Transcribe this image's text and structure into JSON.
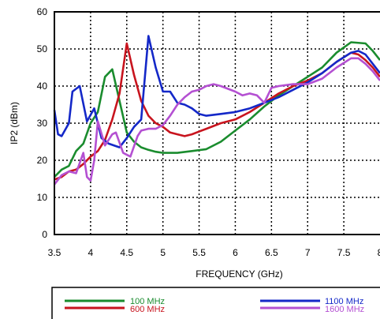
{
  "chart_data": {
    "type": "line",
    "xlabel": "FREQUENCY (GHz)",
    "ylabel": "IP2 (dBm)",
    "xlim": [
      3.5,
      8
    ],
    "ylim": [
      0,
      60
    ],
    "xticks": [
      "3.5",
      "4",
      "4.5",
      "5",
      "5.5",
      "6",
      "6.5",
      "7",
      "7.5",
      "8"
    ],
    "yticks": [
      "0",
      "10",
      "20",
      "30",
      "40",
      "50",
      "60"
    ],
    "grid": true,
    "legend_position": "bottom",
    "series": [
      {
        "name": "100 MHz",
        "color": "#1a8c2e",
        "points": [
          [
            3.5,
            15.5
          ],
          [
            3.6,
            17.5
          ],
          [
            3.7,
            18.5
          ],
          [
            3.8,
            22.5
          ],
          [
            3.9,
            24.5
          ],
          [
            4.0,
            30.0
          ],
          [
            4.1,
            33.0
          ],
          [
            4.2,
            42.5
          ],
          [
            4.3,
            44.5
          ],
          [
            4.4,
            36.0
          ],
          [
            4.5,
            27.5
          ],
          [
            4.6,
            25.0
          ],
          [
            4.7,
            23.5
          ],
          [
            4.8,
            22.8
          ],
          [
            4.9,
            22.3
          ],
          [
            5.0,
            22.0
          ],
          [
            5.2,
            22.0
          ],
          [
            5.4,
            22.5
          ],
          [
            5.6,
            23.0
          ],
          [
            5.8,
            25.0
          ],
          [
            6.0,
            28.0
          ],
          [
            6.2,
            31.0
          ],
          [
            6.4,
            34.5
          ],
          [
            6.6,
            37.5
          ],
          [
            6.8,
            40.0
          ],
          [
            7.0,
            42.5
          ],
          [
            7.2,
            45.0
          ],
          [
            7.4,
            49.0
          ],
          [
            7.6,
            51.8
          ],
          [
            7.8,
            51.5
          ],
          [
            7.9,
            49.5
          ],
          [
            8.0,
            47.0
          ]
        ]
      },
      {
        "name": "600 MHz",
        "color": "#c8141e",
        "points": [
          [
            3.5,
            14.8
          ],
          [
            3.6,
            15.5
          ],
          [
            3.7,
            17.0
          ],
          [
            3.8,
            17.5
          ],
          [
            3.9,
            19.0
          ],
          [
            4.0,
            21.0
          ],
          [
            4.1,
            22.5
          ],
          [
            4.2,
            25.5
          ],
          [
            4.3,
            31.0
          ],
          [
            4.4,
            38.0
          ],
          [
            4.5,
            51.5
          ],
          [
            4.6,
            43.0
          ],
          [
            4.7,
            36.0
          ],
          [
            4.8,
            32.0
          ],
          [
            4.9,
            30.0
          ],
          [
            5.0,
            29.0
          ],
          [
            5.1,
            27.5
          ],
          [
            5.2,
            27.0
          ],
          [
            5.3,
            26.5
          ],
          [
            5.4,
            27.0
          ],
          [
            5.6,
            28.5
          ],
          [
            5.8,
            30.0
          ],
          [
            6.0,
            31.0
          ],
          [
            6.2,
            33.0
          ],
          [
            6.4,
            35.5
          ],
          [
            6.6,
            38.0
          ],
          [
            6.8,
            40.0
          ],
          [
            7.0,
            41.5
          ],
          [
            7.2,
            43.5
          ],
          [
            7.4,
            46.5
          ],
          [
            7.6,
            49.0
          ],
          [
            7.7,
            48.5
          ],
          [
            7.8,
            47.0
          ],
          [
            7.9,
            45.0
          ],
          [
            8.0,
            42.5
          ]
        ]
      },
      {
        "name": "1100 MHz",
        "color": "#1428c8",
        "points": [
          [
            3.5,
            33.5
          ],
          [
            3.55,
            27.0
          ],
          [
            3.6,
            26.5
          ],
          [
            3.7,
            30.0
          ],
          [
            3.75,
            38.5
          ],
          [
            3.85,
            40.0
          ],
          [
            3.95,
            30.5
          ],
          [
            4.05,
            34.0
          ],
          [
            4.15,
            26.0
          ],
          [
            4.25,
            24.5
          ],
          [
            4.4,
            23.5
          ],
          [
            4.5,
            26.0
          ],
          [
            4.6,
            29.0
          ],
          [
            4.7,
            31.0
          ],
          [
            4.8,
            53.5
          ],
          [
            4.9,
            45.0
          ],
          [
            5.0,
            38.5
          ],
          [
            5.1,
            38.5
          ],
          [
            5.2,
            35.5
          ],
          [
            5.3,
            35.0
          ],
          [
            5.4,
            34.0
          ],
          [
            5.5,
            32.5
          ],
          [
            5.6,
            32.0
          ],
          [
            5.8,
            32.5
          ],
          [
            6.0,
            33.0
          ],
          [
            6.2,
            34.0
          ],
          [
            6.4,
            35.5
          ],
          [
            6.6,
            37.0
          ],
          [
            6.8,
            39.0
          ],
          [
            7.0,
            41.0
          ],
          [
            7.2,
            43.5
          ],
          [
            7.4,
            46.5
          ],
          [
            7.6,
            49.0
          ],
          [
            7.7,
            49.5
          ],
          [
            7.8,
            48.5
          ],
          [
            7.9,
            46.0
          ],
          [
            8.0,
            43.5
          ]
        ]
      },
      {
        "name": "1600 MHz",
        "color": "#b450d2",
        "points": [
          [
            3.5,
            13.5
          ],
          [
            3.6,
            16.0
          ],
          [
            3.7,
            17.0
          ],
          [
            3.8,
            16.5
          ],
          [
            3.9,
            22.0
          ],
          [
            3.95,
            15.5
          ],
          [
            4.0,
            14.5
          ],
          [
            4.05,
            20.0
          ],
          [
            4.1,
            30.5
          ],
          [
            4.2,
            24.0
          ],
          [
            4.3,
            27.0
          ],
          [
            4.35,
            27.5
          ],
          [
            4.45,
            22.0
          ],
          [
            4.55,
            21.0
          ],
          [
            4.65,
            26.5
          ],
          [
            4.7,
            28.0
          ],
          [
            4.8,
            28.5
          ],
          [
            4.9,
            28.5
          ],
          [
            5.0,
            29.5
          ],
          [
            5.1,
            32.0
          ],
          [
            5.2,
            35.0
          ],
          [
            5.3,
            37.0
          ],
          [
            5.4,
            38.5
          ],
          [
            5.5,
            39.0
          ],
          [
            5.6,
            40.0
          ],
          [
            5.7,
            40.5
          ],
          [
            5.8,
            40.0
          ],
          [
            6.0,
            38.5
          ],
          [
            6.1,
            37.5
          ],
          [
            6.2,
            38.0
          ],
          [
            6.3,
            37.5
          ],
          [
            6.4,
            35.5
          ],
          [
            6.5,
            39.5
          ],
          [
            6.6,
            40.0
          ],
          [
            6.8,
            40.5
          ],
          [
            7.0,
            40.5
          ],
          [
            7.2,
            42.0
          ],
          [
            7.4,
            45.0
          ],
          [
            7.6,
            47.5
          ],
          [
            7.7,
            47.5
          ],
          [
            7.8,
            46.0
          ],
          [
            7.9,
            44.0
          ],
          [
            8.0,
            41.5
          ]
        ]
      }
    ]
  }
}
